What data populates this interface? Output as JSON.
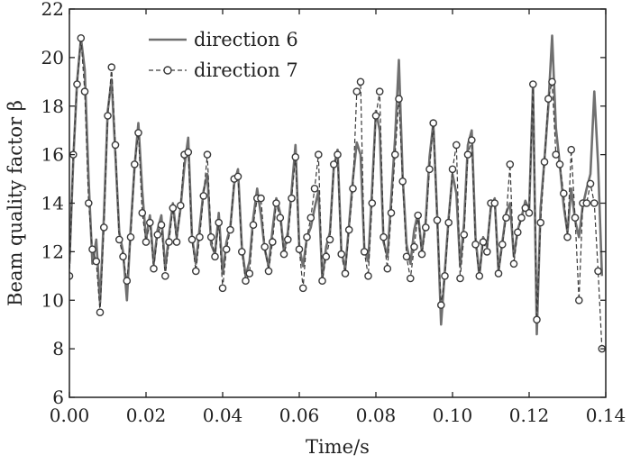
{
  "chart_data": {
    "type": "line",
    "xlabel": "Time/s",
    "ylabel": "Beam quality factor β",
    "xlim": [
      0,
      0.14
    ],
    "ylim": [
      6,
      22
    ],
    "xticks": [
      "0.00",
      "0.02",
      "0.04",
      "0.06",
      "0.08",
      "0.10",
      "0.12",
      "0.14"
    ],
    "yticks": [
      "6",
      "8",
      "10",
      "12",
      "14",
      "16",
      "18",
      "20",
      "22"
    ],
    "grid": false,
    "legend_position": "top-left",
    "series": [
      {
        "name": "direction 6",
        "style": "solid-line",
        "color": "#707070",
        "x": [
          0.0,
          0.001,
          0.002,
          0.003,
          0.004,
          0.005,
          0.006,
          0.007,
          0.008,
          0.009,
          0.01,
          0.011,
          0.012,
          0.013,
          0.014,
          0.015,
          0.016,
          0.017,
          0.018,
          0.019,
          0.02,
          0.021,
          0.022,
          0.023,
          0.024,
          0.025,
          0.026,
          0.027,
          0.028,
          0.029,
          0.03,
          0.031,
          0.032,
          0.033,
          0.034,
          0.035,
          0.036,
          0.037,
          0.038,
          0.039,
          0.04,
          0.041,
          0.042,
          0.043,
          0.044,
          0.045,
          0.046,
          0.047,
          0.048,
          0.049,
          0.05,
          0.051,
          0.052,
          0.053,
          0.054,
          0.055,
          0.056,
          0.057,
          0.058,
          0.059,
          0.06,
          0.061,
          0.062,
          0.063,
          0.064,
          0.065,
          0.066,
          0.067,
          0.068,
          0.069,
          0.07,
          0.071,
          0.072,
          0.073,
          0.074,
          0.075,
          0.076,
          0.077,
          0.078,
          0.079,
          0.08,
          0.081,
          0.082,
          0.083,
          0.084,
          0.085,
          0.086,
          0.087,
          0.088,
          0.089,
          0.09,
          0.091,
          0.092,
          0.093,
          0.094,
          0.095,
          0.096,
          0.097,
          0.098,
          0.099,
          0.1,
          0.101,
          0.102,
          0.103,
          0.104,
          0.105,
          0.106,
          0.107,
          0.108,
          0.109,
          0.11,
          0.111,
          0.112,
          0.113,
          0.114,
          0.115,
          0.116,
          0.117,
          0.118,
          0.119,
          0.12,
          0.121,
          0.122,
          0.123,
          0.124,
          0.125,
          0.126,
          0.127,
          0.128,
          0.129,
          0.13,
          0.131,
          0.132,
          0.133,
          0.134,
          0.135,
          0.136,
          0.137,
          0.138,
          0.139
        ],
        "y": [
          11.5,
          15.8,
          19.0,
          20.8,
          19.5,
          15.0,
          11.5,
          12.5,
          9.9,
          13.5,
          17.8,
          19.1,
          16.0,
          12.8,
          12.0,
          10.0,
          13.0,
          15.5,
          17.3,
          14.5,
          12.5,
          13.5,
          11.5,
          12.9,
          13.5,
          11.3,
          12.7,
          14.0,
          12.6,
          13.8,
          15.5,
          16.7,
          12.6,
          11.5,
          13.0,
          14.5,
          15.2,
          12.3,
          11.9,
          13.6,
          11.1,
          12.4,
          13.0,
          14.8,
          15.4,
          12.2,
          11.0,
          11.6,
          13.4,
          14.6,
          13.5,
          12.1,
          11.4,
          12.9,
          14.2,
          13.6,
          12.0,
          12.8,
          14.5,
          16.4,
          12.2,
          11.4,
          12.6,
          13.0,
          13.8,
          14.5,
          10.9,
          12.2,
          12.8,
          15.5,
          16.2,
          12.0,
          11.3,
          13.1,
          15.0,
          16.5,
          16.0,
          12.1,
          11.6,
          14.6,
          17.8,
          17.0,
          12.4,
          11.8,
          14.2,
          16.7,
          19.9,
          15.1,
          12.3,
          11.5,
          12.9,
          13.6,
          12.0,
          13.3,
          15.9,
          17.3,
          13.5,
          9.0,
          11.2,
          13.4,
          15.2,
          14.4,
          11.4,
          13.2,
          16.4,
          17.0,
          12.6,
          11.0,
          12.6,
          12.2,
          13.8,
          14.2,
          11.2,
          12.4,
          13.6,
          14.0,
          11.8,
          12.9,
          13.4,
          14.1,
          13.7,
          18.9,
          8.6,
          13.8,
          15.8,
          18.0,
          20.9,
          17.1,
          15.6,
          13.9,
          12.8,
          14.6,
          13.3,
          12.6,
          13.9,
          14.6,
          15.2,
          18.6,
          15.6,
          11.0
        ]
      },
      {
        "name": "direction 7",
        "style": "dashed-line-circle-markers",
        "color": "#3a3a3a",
        "x": [
          0.0,
          0.001,
          0.002,
          0.003,
          0.004,
          0.005,
          0.006,
          0.007,
          0.008,
          0.009,
          0.01,
          0.011,
          0.012,
          0.013,
          0.014,
          0.015,
          0.016,
          0.017,
          0.018,
          0.019,
          0.02,
          0.021,
          0.022,
          0.023,
          0.024,
          0.025,
          0.026,
          0.027,
          0.028,
          0.029,
          0.03,
          0.031,
          0.032,
          0.033,
          0.034,
          0.035,
          0.036,
          0.037,
          0.038,
          0.039,
          0.04,
          0.041,
          0.042,
          0.043,
          0.044,
          0.045,
          0.046,
          0.047,
          0.048,
          0.049,
          0.05,
          0.051,
          0.052,
          0.053,
          0.054,
          0.055,
          0.056,
          0.057,
          0.058,
          0.059,
          0.06,
          0.061,
          0.062,
          0.063,
          0.064,
          0.065,
          0.066,
          0.067,
          0.068,
          0.069,
          0.07,
          0.071,
          0.072,
          0.073,
          0.074,
          0.075,
          0.076,
          0.077,
          0.078,
          0.079,
          0.08,
          0.081,
          0.082,
          0.083,
          0.084,
          0.085,
          0.086,
          0.087,
          0.088,
          0.089,
          0.09,
          0.091,
          0.092,
          0.093,
          0.094,
          0.095,
          0.096,
          0.097,
          0.098,
          0.099,
          0.1,
          0.101,
          0.102,
          0.103,
          0.104,
          0.105,
          0.106,
          0.107,
          0.108,
          0.109,
          0.11,
          0.111,
          0.112,
          0.113,
          0.114,
          0.115,
          0.116,
          0.117,
          0.118,
          0.119,
          0.12,
          0.121,
          0.122,
          0.123,
          0.124,
          0.125,
          0.126,
          0.127,
          0.128,
          0.129,
          0.13,
          0.131,
          0.132,
          0.133,
          0.134,
          0.135,
          0.136,
          0.137,
          0.138,
          0.139
        ],
        "y": [
          11.0,
          16.0,
          18.9,
          20.8,
          18.6,
          14.0,
          12.1,
          11.6,
          9.5,
          13.0,
          17.6,
          19.6,
          16.4,
          12.5,
          11.8,
          10.8,
          12.6,
          15.6,
          16.9,
          13.6,
          12.4,
          13.2,
          11.3,
          12.7,
          13.1,
          11.0,
          12.4,
          13.8,
          12.4,
          13.9,
          16.0,
          16.1,
          12.5,
          11.2,
          12.6,
          14.3,
          16.0,
          12.6,
          11.8,
          13.2,
          10.5,
          12.1,
          12.9,
          15.0,
          15.1,
          12.0,
          10.8,
          11.1,
          13.1,
          14.2,
          14.2,
          12.2,
          11.2,
          12.4,
          14.0,
          13.4,
          11.9,
          12.5,
          14.2,
          15.9,
          12.1,
          10.5,
          12.6,
          13.4,
          14.6,
          16.0,
          10.8,
          11.8,
          12.5,
          15.6,
          16.0,
          11.9,
          11.1,
          12.9,
          14.6,
          18.6,
          19.0,
          12.0,
          11.0,
          14.0,
          17.6,
          18.6,
          12.6,
          11.3,
          13.6,
          16.0,
          18.3,
          14.9,
          11.8,
          10.9,
          12.2,
          13.5,
          11.9,
          13.0,
          15.4,
          17.3,
          13.3,
          9.8,
          11.0,
          13.2,
          15.4,
          16.4,
          10.9,
          12.7,
          16.0,
          16.6,
          12.3,
          11.0,
          12.4,
          12.0,
          14.0,
          14.0,
          11.1,
          12.3,
          13.4,
          15.6,
          11.5,
          12.8,
          13.4,
          13.8,
          13.6,
          18.9,
          9.2,
          13.2,
          15.7,
          18.3,
          19.0,
          16.0,
          15.6,
          14.4,
          12.6,
          16.2,
          13.4,
          10.0,
          14.0,
          14.0,
          14.8,
          14.0,
          11.2,
          8.0
        ]
      }
    ]
  }
}
